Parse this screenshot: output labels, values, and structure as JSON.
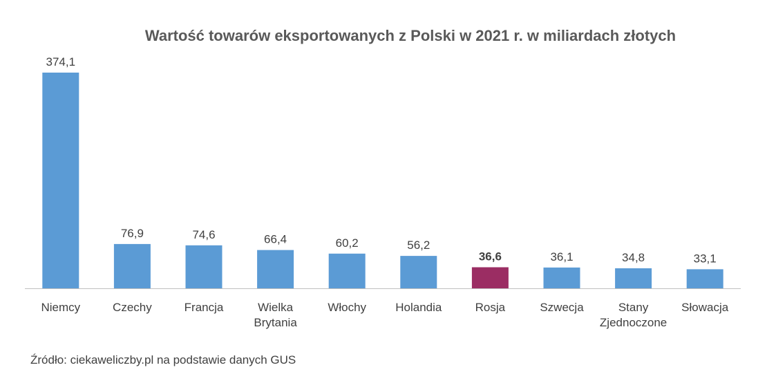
{
  "colors": {
    "bar": "#5b9bd5",
    "highlight": "#9b2d63",
    "axis": "#bfbfbf",
    "text": "#404040",
    "title": "#595959"
  },
  "source": "Źródło: ciekaweliczby.pl na podstawie danych GUS",
  "chart_data": {
    "type": "bar",
    "title": "Wartość towarów eksportowanych z Polski w 2021 r. w miliardach złotych",
    "xlabel": "",
    "ylabel": "",
    "ylim": [
      0,
      374.1
    ],
    "grid": false,
    "legend": "none",
    "categories": [
      [
        "Niemcy"
      ],
      [
        "Czechy"
      ],
      [
        "Francja"
      ],
      [
        "Wielka",
        "Brytania"
      ],
      [
        "Włochy"
      ],
      [
        "Holandia"
      ],
      [
        "Rosja"
      ],
      [
        "Szwecja"
      ],
      [
        "Stany",
        "Zjednoczone"
      ],
      [
        "Słowacja"
      ]
    ],
    "values": [
      374.1,
      76.9,
      74.6,
      66.4,
      60.2,
      56.2,
      36.6,
      36.1,
      34.8,
      33.1
    ],
    "value_labels": [
      "374,1",
      "76,9",
      "74,6",
      "66,4",
      "60,2",
      "56,2",
      "36,6",
      "36,1",
      "34,8",
      "33,1"
    ],
    "highlight_index": 6
  }
}
